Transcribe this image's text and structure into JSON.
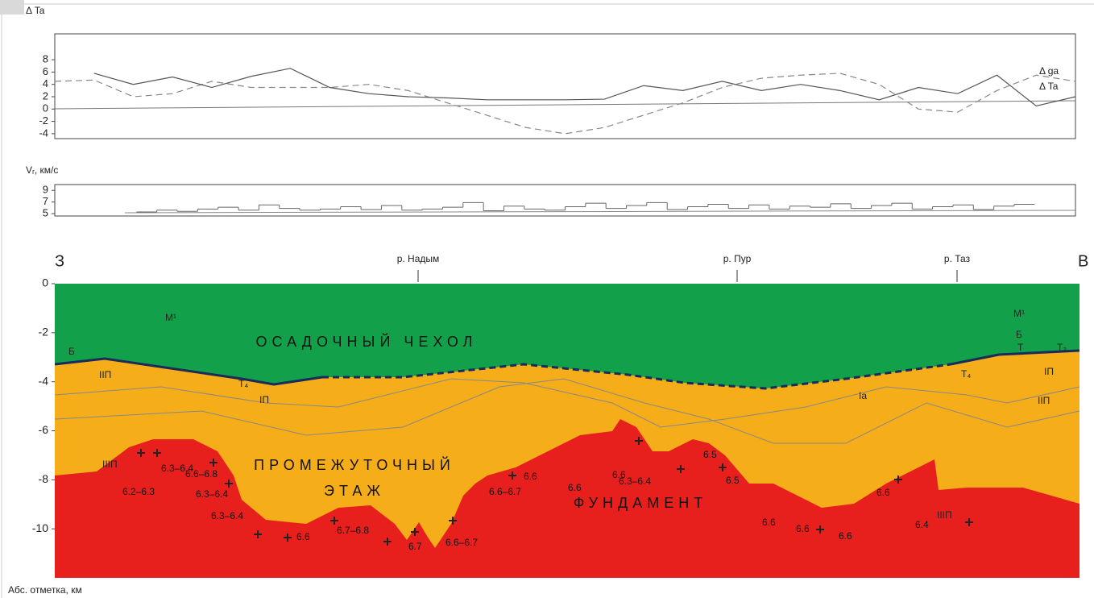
{
  "chart_data": [
    {
      "type": "line",
      "y_label": "Δ Ta",
      "ylim": [
        -4.8,
        12.2
      ],
      "yticks": [
        -4,
        -2,
        0,
        2,
        4,
        6,
        8
      ],
      "series": [
        {
          "name": "Δ ga",
          "color": "#888888",
          "dashed": true,
          "values": [
            4.5,
            4.7,
            2,
            2.5,
            4.5,
            3.5,
            3.5,
            3.5,
            4,
            3,
            1,
            -1,
            -3,
            -4,
            -3,
            -1,
            1,
            3.5,
            5,
            5.5,
            5.8,
            4,
            0,
            -0.5,
            3,
            5.5,
            4.5
          ]
        },
        {
          "name": "Δ Ta",
          "color": "#555555",
          "dashed": false,
          "values": [
            null,
            5.8,
            4,
            5.2,
            3.5,
            5.3,
            6.6,
            3.5,
            2.5,
            2,
            1.8,
            1.5,
            1.5,
            1.5,
            1.6,
            3.8,
            3,
            4.5,
            3,
            4,
            3,
            1.5,
            3.5,
            2.5,
            5.5,
            0.5,
            2
          ]
        }
      ]
    },
    {
      "type": "step",
      "y_label": "Vᵣ, км/с",
      "ylim": [
        4.6,
        10
      ],
      "yticks": [
        5,
        7,
        9
      ],
      "color": "#666666",
      "values": [
        null,
        null,
        null,
        null,
        5.3,
        5.6,
        5.4,
        5.8,
        6.1,
        5.6,
        6.5,
        5.9,
        5.6,
        5.8,
        6.2,
        5.7,
        6.4,
        5.6,
        5.8,
        6.1,
        6.9,
        5.5,
        6.3,
        5.8,
        5.6,
        6.2,
        6.8,
        5.9,
        6.4,
        6.9,
        5.7,
        6.2,
        6.6,
        5.9,
        6.5,
        5.8,
        6.3,
        6.1,
        6.7,
        5.9,
        6.4,
        6.8,
        5.8,
        6.2,
        6.5,
        5.7,
        6.3,
        6.6,
        null,
        null
      ]
    },
    {
      "type": "section",
      "y_label": "Абс. отметка, км",
      "ylim": [
        -12,
        0
      ],
      "yticks": [
        0,
        -2,
        -4,
        -6,
        -8,
        -10
      ],
      "annotations": [
        "З",
        "В",
        "р. Надым",
        "р. Пур",
        "р. Таз",
        "ОСАДОЧНЫЙ ЧЕХОЛ",
        "ПРОМЕЖУТОЧНЫЙ",
        "ЭТАЖ",
        "ФУНДАМЕНТ",
        "М¹",
        "М¹",
        "Б",
        "Б",
        "Т",
        "Т₂",
        "IIП",
        "Т₄",
        "IП",
        "Ia",
        "Т₄",
        "IП",
        "IIП",
        "IIIП",
        "6.3–6.4",
        "6.2–6.3",
        "6.6–6.8",
        "6.3–6.4",
        "6.3–6.4",
        "6.6",
        "6.7–6.8",
        "6.7",
        "6.6–6.7",
        "6.6",
        "6.6–6.7",
        "6.6",
        "6.6",
        "6.3–6.4",
        "6.5",
        "6.5",
        "6.6",
        "6.6",
        "6.6",
        "6.6",
        "6.4",
        "IIIП"
      ]
    }
  ]
}
